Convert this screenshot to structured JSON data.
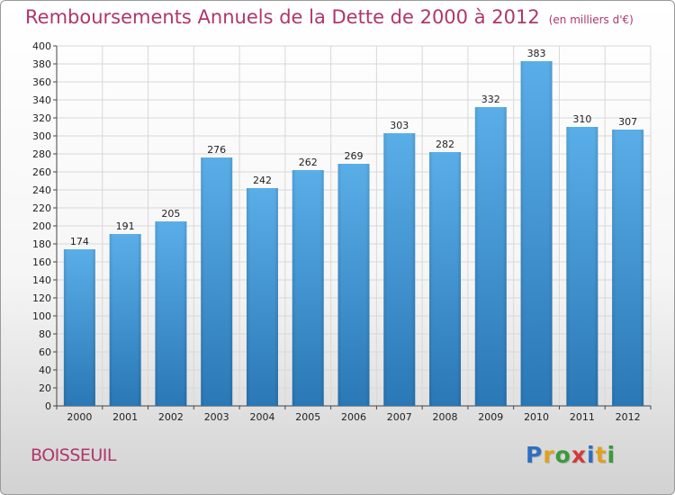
{
  "header": {
    "title": "Remboursements Annuels de la Dette de 2000 à 2012",
    "subtitle": "(en milliers d'€)"
  },
  "footer": {
    "commune": "BOISSEUIL",
    "logo_text": "Proxiti"
  },
  "colors": {
    "title": "#b0366b",
    "bar_light": "#5aaee8",
    "bar_dark": "#2a78b6",
    "grid": "#d8d8d8"
  },
  "chart_data": {
    "type": "bar",
    "title": "Remboursements Annuels de la Dette de 2000 à 2012",
    "subtitle": "(en milliers d'€)",
    "categories": [
      "2000",
      "2001",
      "2002",
      "2003",
      "2004",
      "2005",
      "2006",
      "2007",
      "2008",
      "2009",
      "2010",
      "2011",
      "2012"
    ],
    "values": [
      174,
      191,
      205,
      276,
      242,
      262,
      269,
      303,
      282,
      332,
      383,
      310,
      307
    ],
    "ylim": [
      0,
      400
    ],
    "ytick_step": 20,
    "grid": true,
    "legend": "none"
  }
}
